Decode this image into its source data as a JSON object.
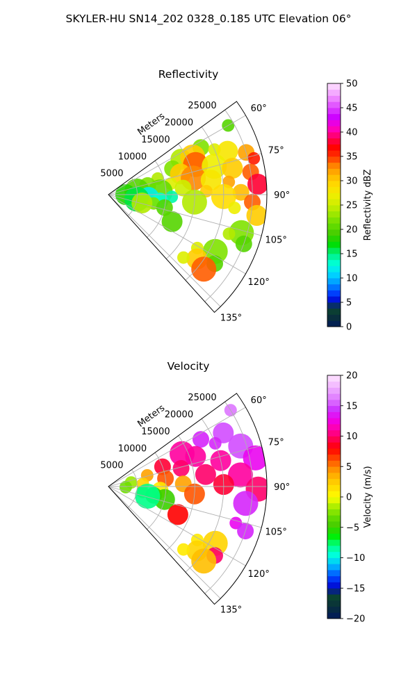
{
  "figure": {
    "suptitle": "SKYLER-HU  SN14_202  0328_0.185 UTC Elevation 06°"
  },
  "chart_data": [
    {
      "type": "heatmap",
      "title": "Reflectivity",
      "projection": "polar-sector",
      "range_label": "Meters",
      "range_ticks": [
        "5000",
        "10000",
        "15000",
        "20000",
        "25000"
      ],
      "range_values": [
        5000,
        10000,
        15000,
        20000,
        25000
      ],
      "range_max": 27500,
      "angle_ticks": [
        "60°",
        "75°",
        "90°",
        "105°",
        "120°",
        "135°"
      ],
      "angle_values": [
        60,
        75,
        90,
        105,
        120,
        135
      ],
      "angle_range": [
        54,
        138
      ],
      "colorbar": {
        "label": "Reflectivity dBZ",
        "ticks": [
          "0",
          "5",
          "10",
          "15",
          "20",
          "25",
          "30",
          "35",
          "40",
          "45",
          "50"
        ],
        "vmin": 0,
        "vmax": 50
      },
      "cells": [
        {
          "az": 60,
          "r": 24000,
          "v": 20
        },
        {
          "az": 63,
          "r": 18000,
          "v": 22
        },
        {
          "az": 64,
          "r": 14000,
          "v": 24
        },
        {
          "az": 66,
          "r": 16000,
          "v": 30
        },
        {
          "az": 67,
          "r": 20000,
          "v": 26
        },
        {
          "az": 68,
          "r": 12000,
          "v": 22
        },
        {
          "az": 70,
          "r": 22000,
          "v": 28
        },
        {
          "az": 71,
          "r": 16000,
          "v": 34
        },
        {
          "az": 72,
          "r": 9000,
          "v": 24
        },
        {
          "az": 73,
          "r": 25000,
          "v": 32
        },
        {
          "az": 74,
          "r": 13000,
          "v": 30
        },
        {
          "az": 75,
          "r": 19000,
          "v": 27
        },
        {
          "az": 76,
          "r": 26000,
          "v": 36
        },
        {
          "az": 77,
          "r": 7000,
          "v": 22
        },
        {
          "az": 78,
          "r": 22000,
          "v": 30
        },
        {
          "az": 79,
          "r": 15000,
          "v": 33
        },
        {
          "az": 80,
          "r": 11000,
          "v": 26
        },
        {
          "az": 81,
          "r": 25000,
          "v": 34
        },
        {
          "az": 82,
          "r": 18000,
          "v": 28
        },
        {
          "az": 83,
          "r": 5000,
          "v": 20
        },
        {
          "az": 84,
          "r": 21000,
          "v": 32
        },
        {
          "az": 85,
          "r": 13000,
          "v": 25
        },
        {
          "az": 86,
          "r": 26000,
          "v": 38
        },
        {
          "az": 87,
          "r": 9000,
          "v": 21
        },
        {
          "az": 88,
          "r": 17000,
          "v": 30
        },
        {
          "az": 89,
          "r": 23000,
          "v": 31
        },
        {
          "az": 90,
          "r": 3000,
          "v": 18
        },
        {
          "az": 91,
          "r": 20000,
          "v": 29
        },
        {
          "az": 92,
          "r": 11000,
          "v": 14
        },
        {
          "az": 93,
          "r": 25000,
          "v": 34
        },
        {
          "az": 94,
          "r": 7000,
          "v": 12
        },
        {
          "az": 95,
          "r": 15000,
          "v": 24
        },
        {
          "az": 96,
          "r": 22000,
          "v": 27
        },
        {
          "az": 97,
          "r": 9000,
          "v": 13
        },
        {
          "az": 98,
          "r": 26000,
          "v": 30
        },
        {
          "az": 99,
          "r": 5000,
          "v": 16
        },
        {
          "az": 101,
          "r": 8000,
          "v": 22
        },
        {
          "az": 103,
          "r": 10000,
          "v": 20
        },
        {
          "az": 104,
          "r": 6000,
          "v": 24
        },
        {
          "az": 106,
          "r": 24000,
          "v": 22
        },
        {
          "az": 108,
          "r": 22000,
          "v": 24
        },
        {
          "az": 110,
          "r": 25000,
          "v": 20
        },
        {
          "az": 113,
          "r": 12000,
          "v": 20
        },
        {
          "az": 118,
          "r": 21000,
          "v": 22
        },
        {
          "az": 121,
          "r": 18000,
          "v": 26
        },
        {
          "az": 123,
          "r": 22000,
          "v": 20
        },
        {
          "az": 126,
          "r": 19000,
          "v": 30
        },
        {
          "az": 128,
          "r": 21000,
          "v": 34
        },
        {
          "az": 130,
          "r": 17000,
          "v": 26
        }
      ]
    },
    {
      "type": "heatmap",
      "title": "Velocity",
      "projection": "polar-sector",
      "range_label": "Meters",
      "range_ticks": [
        "5000",
        "10000",
        "15000",
        "20000",
        "25000"
      ],
      "range_values": [
        5000,
        10000,
        15000,
        20000,
        25000
      ],
      "range_max": 27500,
      "angle_ticks": [
        "60°",
        "75°",
        "90°",
        "105°",
        "120°",
        "135°"
      ],
      "angle_values": [
        60,
        75,
        90,
        105,
        120,
        135
      ],
      "angle_range": [
        54,
        138
      ],
      "colorbar": {
        "label": "Velocity (m/s)",
        "ticks": [
          "−20",
          "−15",
          "−10",
          "−5",
          "0",
          "5",
          "10",
          "15",
          "20"
        ],
        "vmin": -20,
        "vmax": 20
      },
      "cells": [
        {
          "az": 58,
          "r": 25000,
          "v": 16
        },
        {
          "az": 63,
          "r": 18000,
          "v": 14
        },
        {
          "az": 65,
          "r": 22000,
          "v": 15
        },
        {
          "az": 66,
          "r": 14000,
          "v": 11
        },
        {
          "az": 68,
          "r": 20000,
          "v": 14
        },
        {
          "az": 70,
          "r": 10000,
          "v": 9
        },
        {
          "az": 71,
          "r": 16000,
          "v": 11
        },
        {
          "az": 73,
          "r": 24000,
          "v": 15
        },
        {
          "az": 74,
          "r": 7000,
          "v": 4
        },
        {
          "az": 76,
          "r": 13000,
          "v": 10
        },
        {
          "az": 77,
          "r": 20000,
          "v": 11
        },
        {
          "az": 79,
          "r": 26000,
          "v": 13
        },
        {
          "az": 80,
          "r": 4000,
          "v": -2
        },
        {
          "az": 82,
          "r": 10000,
          "v": 6
        },
        {
          "az": 83,
          "r": 17000,
          "v": 10
        },
        {
          "az": 85,
          "r": 23000,
          "v": 11
        },
        {
          "az": 86,
          "r": 6000,
          "v": 2
        },
        {
          "az": 88,
          "r": 13000,
          "v": 4
        },
        {
          "az": 89,
          "r": 20000,
          "v": 9
        },
        {
          "az": 91,
          "r": 26000,
          "v": 10
        },
        {
          "az": 92,
          "r": 3000,
          "v": -3
        },
        {
          "az": 94,
          "r": 9000,
          "v": 1
        },
        {
          "az": 95,
          "r": 15000,
          "v": 6
        },
        {
          "az": 97,
          "r": 24000,
          "v": 14
        },
        {
          "az": 99,
          "r": 6000,
          "v": -4
        },
        {
          "az": 101,
          "r": 8000,
          "v": -6
        },
        {
          "az": 103,
          "r": 10000,
          "v": -5
        },
        {
          "az": 104,
          "r": 7000,
          "v": -8
        },
        {
          "az": 106,
          "r": 23000,
          "v": 13
        },
        {
          "az": 108,
          "r": 25000,
          "v": 14
        },
        {
          "az": 112,
          "r": 13000,
          "v": 8
        },
        {
          "az": 118,
          "r": 21000,
          "v": 2
        },
        {
          "az": 121,
          "r": 18000,
          "v": 1
        },
        {
          "az": 123,
          "r": 22000,
          "v": 10
        },
        {
          "az": 126,
          "r": 19000,
          "v": 2
        },
        {
          "az": 128,
          "r": 21000,
          "v": 3
        },
        {
          "az": 130,
          "r": 17000,
          "v": 1
        }
      ]
    }
  ]
}
